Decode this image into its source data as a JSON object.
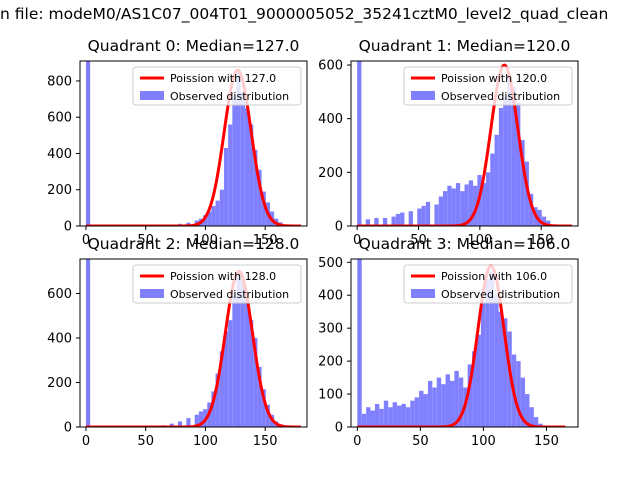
{
  "figure": {
    "suptitle": "n file: modeM0/AS1C07_004T01_9000005052_35241cztM0_level2_quad_clean"
  },
  "colors": {
    "poisson_line": "#ff0000",
    "observed_bars": "#8080ff",
    "axes": "#000000",
    "legend_border": "#cccccc"
  },
  "chart_data": [
    {
      "type": "bar",
      "title": "Quadrant 0: Median=127.0",
      "median": 127.0,
      "xlim": [
        -5,
        185
      ],
      "ylim": [
        0,
        910
      ],
      "xticks": [
        0,
        50,
        100,
        150
      ],
      "yticks": [
        0,
        200,
        400,
        600,
        800
      ],
      "legend_position": "upper-right",
      "legend": {
        "line_label": "Poission with 127.0",
        "bar_label": "Observed distribution"
      },
      "histogram": {
        "name": "Observed distribution",
        "bin_width": 3.5,
        "bins": [
          {
            "x": 0,
            "count": 910
          },
          {
            "x": 63,
            "count": 5
          },
          {
            "x": 70,
            "count": 8
          },
          {
            "x": 77,
            "count": 12
          },
          {
            "x": 84,
            "count": 18
          },
          {
            "x": 91,
            "count": 30
          },
          {
            "x": 94.5,
            "count": 40
          },
          {
            "x": 98,
            "count": 60
          },
          {
            "x": 101.5,
            "count": 80
          },
          {
            "x": 105,
            "count": 110
          },
          {
            "x": 108.5,
            "count": 140
          },
          {
            "x": 112,
            "count": 200
          },
          {
            "x": 115.5,
            "count": 430
          },
          {
            "x": 119,
            "count": 560
          },
          {
            "x": 122.5,
            "count": 710
          },
          {
            "x": 126,
            "count": 860
          },
          {
            "x": 129.5,
            "count": 740
          },
          {
            "x": 133,
            "count": 650
          },
          {
            "x": 136.5,
            "count": 560
          },
          {
            "x": 140,
            "count": 420
          },
          {
            "x": 143.5,
            "count": 310
          },
          {
            "x": 147,
            "count": 190
          },
          {
            "x": 150.5,
            "count": 130
          },
          {
            "x": 154,
            "count": 80
          },
          {
            "x": 157.5,
            "count": 40
          },
          {
            "x": 161,
            "count": 20
          },
          {
            "x": 164.5,
            "count": 8
          }
        ]
      },
      "poisson": {
        "name": "Poission with 127.0",
        "mean": 127.0,
        "peak": 860,
        "x_range": [
          0,
          180
        ]
      }
    },
    {
      "type": "bar",
      "title": "Quadrant 1: Median=120.0",
      "median": 120.0,
      "xlim": [
        -5,
        180
      ],
      "ylim": [
        0,
        615
      ],
      "xticks": [
        0,
        50,
        100,
        150
      ],
      "yticks": [
        0,
        200,
        400,
        600
      ],
      "legend_position": "upper-right",
      "legend": {
        "line_label": "Poission with 120.0",
        "bar_label": "Observed distribution"
      },
      "histogram": {
        "name": "Observed distribution",
        "bin_width": 3.5,
        "bins": [
          {
            "x": 0,
            "count": 615
          },
          {
            "x": 7,
            "count": 25
          },
          {
            "x": 14,
            "count": 30
          },
          {
            "x": 21,
            "count": 30
          },
          {
            "x": 28,
            "count": 35
          },
          {
            "x": 31.5,
            "count": 45
          },
          {
            "x": 35,
            "count": 50
          },
          {
            "x": 42,
            "count": 55
          },
          {
            "x": 49,
            "count": 65
          },
          {
            "x": 52.5,
            "count": 75
          },
          {
            "x": 56,
            "count": 90
          },
          {
            "x": 63,
            "count": 80
          },
          {
            "x": 66.5,
            "count": 110
          },
          {
            "x": 70,
            "count": 130
          },
          {
            "x": 73.5,
            "count": 150
          },
          {
            "x": 77,
            "count": 140
          },
          {
            "x": 80.5,
            "count": 160
          },
          {
            "x": 84,
            "count": 130
          },
          {
            "x": 87.5,
            "count": 155
          },
          {
            "x": 91,
            "count": 170
          },
          {
            "x": 94.5,
            "count": 150
          },
          {
            "x": 98,
            "count": 190
          },
          {
            "x": 101.5,
            "count": 160
          },
          {
            "x": 105,
            "count": 200
          },
          {
            "x": 108.5,
            "count": 270
          },
          {
            "x": 112,
            "count": 340
          },
          {
            "x": 115.5,
            "count": 440
          },
          {
            "x": 119,
            "count": 480
          },
          {
            "x": 122.5,
            "count": 560
          },
          {
            "x": 126,
            "count": 520
          },
          {
            "x": 129.5,
            "count": 460
          },
          {
            "x": 133,
            "count": 320
          },
          {
            "x": 136.5,
            "count": 240
          },
          {
            "x": 140,
            "count": 120
          },
          {
            "x": 143.5,
            "count": 70
          },
          {
            "x": 147,
            "count": 60
          },
          {
            "x": 150.5,
            "count": 35
          },
          {
            "x": 154,
            "count": 20
          }
        ]
      },
      "poisson": {
        "name": "Poission with 120.0",
        "mean": 120.0,
        "peak": 600,
        "x_range": [
          0,
          175
        ]
      }
    },
    {
      "type": "bar",
      "title": "Quadrant 2: Median=128.0",
      "median": 128.0,
      "xlim": [
        -5,
        185
      ],
      "ylim": [
        0,
        755
      ],
      "xticks": [
        0,
        50,
        100,
        150
      ],
      "yticks": [
        0,
        200,
        400,
        600
      ],
      "legend_position": "upper-right",
      "legend": {
        "line_label": "Poission with 128.0",
        "bar_label": "Observed distribution"
      },
      "histogram": {
        "name": "Observed distribution",
        "bin_width": 3.5,
        "bins": [
          {
            "x": 0,
            "count": 755
          },
          {
            "x": 56,
            "count": 5
          },
          {
            "x": 63,
            "count": 8
          },
          {
            "x": 70,
            "count": 15
          },
          {
            "x": 77,
            "count": 25
          },
          {
            "x": 84,
            "count": 40
          },
          {
            "x": 91,
            "count": 55
          },
          {
            "x": 94.5,
            "count": 70
          },
          {
            "x": 98,
            "count": 80
          },
          {
            "x": 101.5,
            "count": 110
          },
          {
            "x": 105,
            "count": 160
          },
          {
            "x": 108.5,
            "count": 240
          },
          {
            "x": 112,
            "count": 340
          },
          {
            "x": 115.5,
            "count": 430
          },
          {
            "x": 119,
            "count": 480
          },
          {
            "x": 122.5,
            "count": 590
          },
          {
            "x": 126,
            "count": 690
          },
          {
            "x": 129.5,
            "count": 660
          },
          {
            "x": 133,
            "count": 580
          },
          {
            "x": 136.5,
            "count": 480
          },
          {
            "x": 140,
            "count": 400
          },
          {
            "x": 143.5,
            "count": 270
          },
          {
            "x": 147,
            "count": 170
          },
          {
            "x": 150.5,
            "count": 100
          },
          {
            "x": 154,
            "count": 55
          },
          {
            "x": 157.5,
            "count": 25
          },
          {
            "x": 161,
            "count": 10
          }
        ]
      },
      "poisson": {
        "name": "Poission with 128.0",
        "mean": 128.0,
        "peak": 700,
        "x_range": [
          0,
          180
        ]
      }
    },
    {
      "type": "bar",
      "title": "Quadrant 3: Median=106.0",
      "median": 106.0,
      "xlim": [
        -5,
        175
      ],
      "ylim": [
        0,
        510
      ],
      "xticks": [
        0,
        50,
        100,
        150
      ],
      "yticks": [
        0,
        100,
        200,
        300,
        400,
        500
      ],
      "legend_position": "upper-right",
      "legend": {
        "line_label": "Poission with 106.0",
        "bar_label": "Observed distribution"
      },
      "histogram": {
        "name": "Observed distribution",
        "bin_width": 3.5,
        "bins": [
          {
            "x": 0,
            "count": 510
          },
          {
            "x": 3.5,
            "count": 40
          },
          {
            "x": 7,
            "count": 60
          },
          {
            "x": 10.5,
            "count": 50
          },
          {
            "x": 14,
            "count": 70
          },
          {
            "x": 17.5,
            "count": 55
          },
          {
            "x": 21,
            "count": 80
          },
          {
            "x": 24.5,
            "count": 60
          },
          {
            "x": 28,
            "count": 75
          },
          {
            "x": 31.5,
            "count": 65
          },
          {
            "x": 35,
            "count": 70
          },
          {
            "x": 38.5,
            "count": 60
          },
          {
            "x": 42,
            "count": 80
          },
          {
            "x": 45.5,
            "count": 90
          },
          {
            "x": 49,
            "count": 110
          },
          {
            "x": 52.5,
            "count": 100
          },
          {
            "x": 56,
            "count": 140
          },
          {
            "x": 59.5,
            "count": 120
          },
          {
            "x": 63,
            "count": 150
          },
          {
            "x": 66.5,
            "count": 130
          },
          {
            "x": 70,
            "count": 160
          },
          {
            "x": 73.5,
            "count": 140
          },
          {
            "x": 77,
            "count": 170
          },
          {
            "x": 80.5,
            "count": 150
          },
          {
            "x": 84,
            "count": 120
          },
          {
            "x": 87.5,
            "count": 190
          },
          {
            "x": 91,
            "count": 230
          },
          {
            "x": 94.5,
            "count": 280
          },
          {
            "x": 98,
            "count": 380
          },
          {
            "x": 101.5,
            "count": 450
          },
          {
            "x": 105,
            "count": 470
          },
          {
            "x": 108.5,
            "count": 400
          },
          {
            "x": 112,
            "count": 350
          },
          {
            "x": 115.5,
            "count": 330
          },
          {
            "x": 119,
            "count": 290
          },
          {
            "x": 122.5,
            "count": 220
          },
          {
            "x": 126,
            "count": 200
          },
          {
            "x": 129.5,
            "count": 150
          },
          {
            "x": 133,
            "count": 100
          },
          {
            "x": 136.5,
            "count": 60
          },
          {
            "x": 140,
            "count": 30
          },
          {
            "x": 143.5,
            "count": 10
          }
        ]
      },
      "poisson": {
        "name": "Poission with 106.0",
        "mean": 106.0,
        "peak": 490,
        "x_range": [
          0,
          165
        ]
      }
    }
  ]
}
